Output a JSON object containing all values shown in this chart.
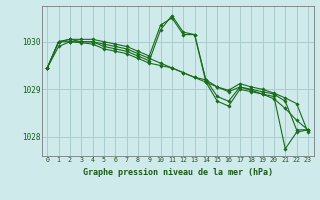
{
  "title": "Graphe pression niveau de la mer (hPa)",
  "background_color": "#ceeaea",
  "grid_color": "#aacccc",
  "line_color": "#1a6b1a",
  "x_labels": [
    "0",
    "1",
    "2",
    "3",
    "4",
    "5",
    "6",
    "7",
    "8",
    "9",
    "10",
    "11",
    "12",
    "13",
    "14",
    "15",
    "16",
    "17",
    "18",
    "19",
    "20",
    "21",
    "22",
    "23"
  ],
  "ylim": [
    1027.6,
    1030.75
  ],
  "yticks": [
    1028,
    1029,
    1030
  ],
  "series": [
    [
      1029.45,
      1029.9,
      1030.0,
      1030.0,
      1030.0,
      1029.95,
      1029.9,
      1029.85,
      1029.75,
      1029.65,
      1029.55,
      1029.45,
      1029.35,
      1029.25,
      1029.15,
      1029.05,
      1028.95,
      1029.05,
      1028.98,
      1028.9,
      1028.8,
      1028.6,
      1028.35,
      1028.15
    ],
    [
      1029.45,
      1030.0,
      1030.05,
      1030.05,
      1030.05,
      1030.0,
      1029.95,
      1029.9,
      1029.8,
      1029.7,
      1030.35,
      1030.5,
      1030.15,
      1030.15,
      1029.2,
      1028.85,
      1028.75,
      1029.05,
      1029.0,
      1028.95,
      1028.9,
      1028.75,
      1028.15,
      1028.15
    ],
    [
      1029.45,
      1030.0,
      1030.05,
      1030.0,
      1030.0,
      1029.9,
      1029.85,
      1029.8,
      1029.7,
      1029.6,
      1030.25,
      1030.55,
      1030.2,
      1030.15,
      1029.15,
      1028.75,
      1028.65,
      1029.0,
      1028.95,
      1028.9,
      1028.85,
      1027.75,
      1028.1,
      1028.15
    ],
    [
      1029.45,
      1030.0,
      1030.0,
      1029.98,
      1029.95,
      1029.85,
      1029.8,
      1029.75,
      1029.65,
      1029.55,
      1029.5,
      1029.45,
      1029.35,
      1029.25,
      1029.2,
      1029.05,
      1028.98,
      1029.12,
      1029.05,
      1029.0,
      1028.92,
      1028.82,
      1028.7,
      1028.1
    ]
  ]
}
